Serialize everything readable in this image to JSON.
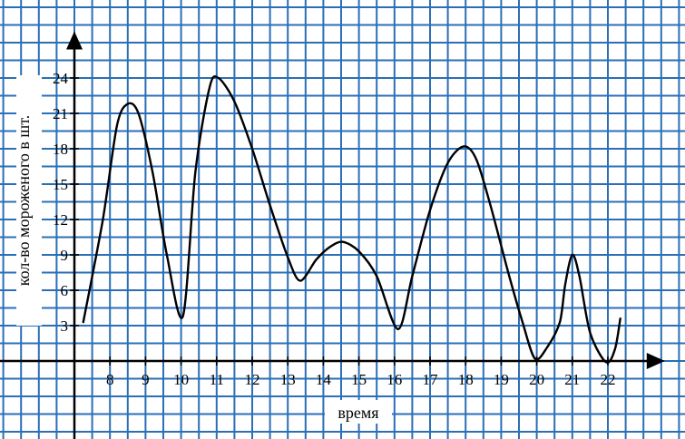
{
  "chart_data": {
    "type": "line",
    "title": "",
    "xlabel": "время",
    "ylabel": "кол-во мороженого в шт.",
    "x_ticks": [
      8,
      9,
      10,
      11,
      12,
      13,
      14,
      15,
      16,
      17,
      18,
      19,
      20,
      21,
      22
    ],
    "y_ticks": [
      3,
      6,
      9,
      12,
      15,
      18,
      21,
      24
    ],
    "xlim": [
      6.9,
      23.5
    ],
    "ylim": [
      -3,
      27.5
    ],
    "grid": true,
    "colors": {
      "grid": "#2a6fb7",
      "background": "#ffffff",
      "line": "#000000",
      "axis": "#000000"
    },
    "series": [
      {
        "x": [
          7.25,
          7.8,
          8.2,
          8.5,
          8.8,
          9.2,
          9.6,
          10.05,
          10.4,
          10.8,
          11.05,
          11.5,
          12.0,
          12.5,
          13.0,
          13.35,
          13.8,
          14.2,
          14.55,
          15.0,
          15.5,
          16.1,
          16.5,
          17.0,
          17.5,
          17.95,
          18.3,
          18.7,
          19.2,
          19.6,
          19.95,
          20.3,
          20.65,
          20.8,
          21.0,
          21.2,
          21.5,
          21.95,
          22.2,
          22.35
        ],
        "y": [
          3.3,
          12.0,
          20.0,
          21.8,
          21.0,
          16.0,
          9.0,
          3.8,
          16.0,
          23.2,
          24.0,
          22.0,
          18.0,
          13.2,
          8.8,
          6.8,
          8.6,
          9.7,
          10.1,
          9.3,
          7.2,
          2.7,
          7.2,
          12.8,
          16.8,
          18.2,
          17.1,
          13.2,
          7.5,
          3.3,
          0.2,
          1.2,
          3.3,
          6.5,
          9.0,
          7.2,
          2.4,
          -0.1,
          1.0,
          3.6
        ]
      }
    ]
  }
}
